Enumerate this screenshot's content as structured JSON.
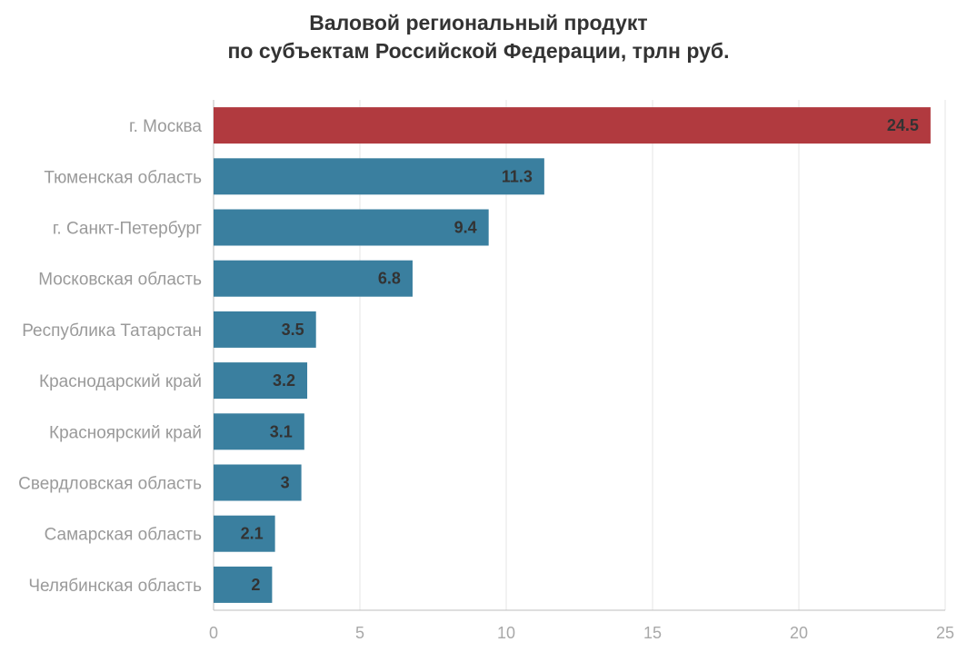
{
  "chart_data": {
    "type": "bar",
    "orientation": "horizontal",
    "title_lines": [
      "Валовой региональный продукт",
      "по субъектам Российской Федерации, трлн руб."
    ],
    "categories": [
      "г. Москва",
      "Тюменская область",
      "г. Санкт-Петербург",
      "Московская область",
      "Республика Татарстан",
      "Краснодарский край",
      "Красноярский край",
      "Свердловская область",
      "Самарская область",
      "Челябинская область"
    ],
    "values": [
      24.5,
      11.3,
      9.4,
      6.8,
      3.5,
      3.2,
      3.1,
      3,
      2.1,
      2
    ],
    "value_labels": [
      "24.5",
      "11.3",
      "9.4",
      "6.8",
      "3.5",
      "3.2",
      "3.1",
      "3",
      "2.1",
      "2"
    ],
    "xlim": [
      0,
      25
    ],
    "xticks": [
      0,
      5,
      10,
      15,
      20,
      25
    ],
    "xtick_labels": [
      "0",
      "5",
      "10",
      "15",
      "20",
      "25"
    ],
    "grid": "vertical",
    "highlight_index": 0,
    "colors": {
      "highlight": "#b13a3f",
      "bar": "#3a7f9f",
      "grid": "#e6e6e6",
      "axis": "#bdbdbd"
    }
  }
}
